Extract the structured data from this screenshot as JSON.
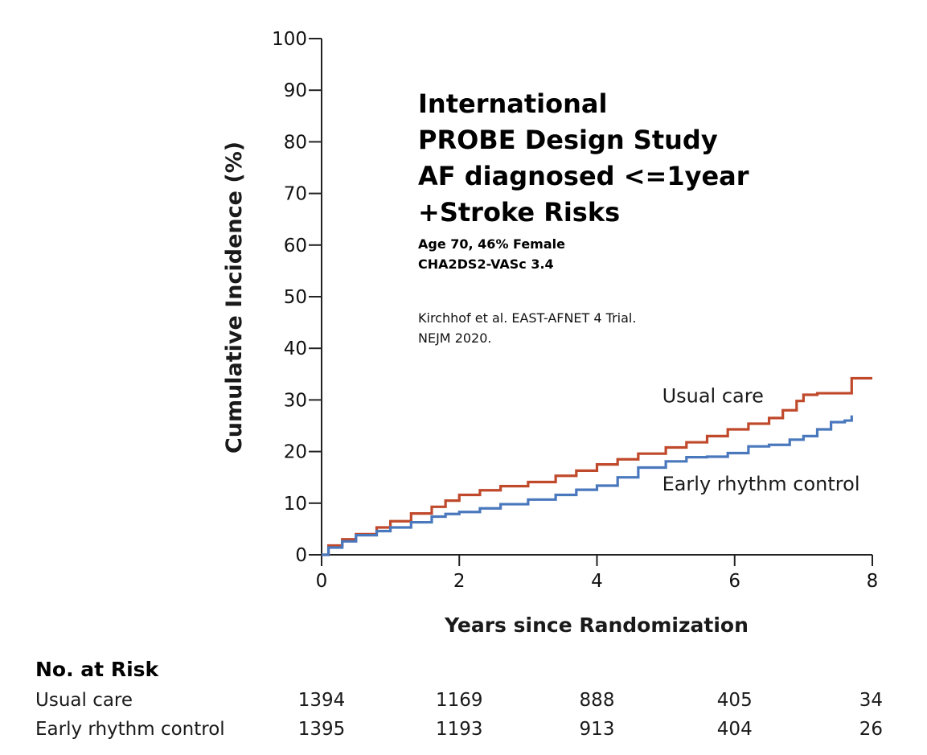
{
  "chart_data": {
    "type": "line",
    "title_lines": [
      "International",
      "PROBE Design Study",
      "AF diagnosed <=1year",
      "+Stroke Risks"
    ],
    "subtitle_lines": [
      "Age 70, 46% Female",
      "CHA2DS2-VASc 3.4"
    ],
    "citation_lines": [
      "Kirchhof et al. EAST-AFNET 4 Trial.",
      "NEJM 2020."
    ],
    "xlabel": "Years since Randomization",
    "ylabel": "Cumulative Incidence (%)",
    "xlim": [
      0,
      8
    ],
    "ylim": [
      0,
      100
    ],
    "xticks": [
      0,
      2,
      4,
      6,
      8
    ],
    "yticks": [
      0,
      10,
      20,
      30,
      40,
      50,
      60,
      70,
      80,
      90,
      100
    ],
    "grid": false,
    "series": [
      {
        "name": "Usual care",
        "color": "#c0492b",
        "x": [
          0,
          0.1,
          0.3,
          0.5,
          0.8,
          1.0,
          1.3,
          1.6,
          1.8,
          2.0,
          2.3,
          2.6,
          3.0,
          3.4,
          3.7,
          4.0,
          4.3,
          4.6,
          5.0,
          5.3,
          5.6,
          5.9,
          6.2,
          6.5,
          6.7,
          6.9,
          7.0,
          7.2,
          7.4,
          7.6,
          7.7,
          8.0
        ],
        "y": [
          0,
          1.8,
          3.0,
          4.0,
          5.3,
          6.5,
          8.0,
          9.3,
          10.5,
          11.6,
          12.5,
          13.3,
          14.1,
          15.3,
          16.3,
          17.5,
          18.5,
          19.6,
          20.8,
          21.8,
          23.0,
          24.3,
          25.4,
          26.5,
          28.0,
          29.8,
          31.0,
          31.3,
          31.3,
          31.3,
          34.2,
          34.2
        ]
      },
      {
        "name": "Early rhythm control",
        "color": "#4a78bd",
        "x": [
          0,
          0.1,
          0.3,
          0.5,
          0.8,
          1.0,
          1.3,
          1.6,
          1.8,
          2.0,
          2.3,
          2.6,
          3.0,
          3.4,
          3.7,
          4.0,
          4.3,
          4.6,
          5.0,
          5.3,
          5.6,
          5.9,
          6.2,
          6.5,
          6.8,
          7.0,
          7.2,
          7.4,
          7.6,
          7.7
        ],
        "y": [
          0,
          1.4,
          2.6,
          3.8,
          4.6,
          5.3,
          6.3,
          7.4,
          7.9,
          8.3,
          9.0,
          9.8,
          10.7,
          11.6,
          12.6,
          13.4,
          15.0,
          16.9,
          18.1,
          18.9,
          19.0,
          19.7,
          21.0,
          21.3,
          22.3,
          23.0,
          24.3,
          25.7,
          26.0,
          27.0
        ]
      }
    ],
    "series_labels": [
      {
        "text": "Usual care",
        "x": 4.9,
        "y": 29.5
      },
      {
        "text": "Early rhythm control",
        "x": 4.9,
        "y": 12.5
      }
    ]
  },
  "risk_table": {
    "title": "No. at Risk",
    "times": [
      0,
      2,
      4,
      6,
      8
    ],
    "rows": [
      {
        "name": "Usual care",
        "values": [
          "1394",
          "1169",
          "888",
          "405",
          "34"
        ]
      },
      {
        "name": "Early rhythm control",
        "values": [
          "1395",
          "1193",
          "913",
          "404",
          "26"
        ]
      }
    ]
  }
}
